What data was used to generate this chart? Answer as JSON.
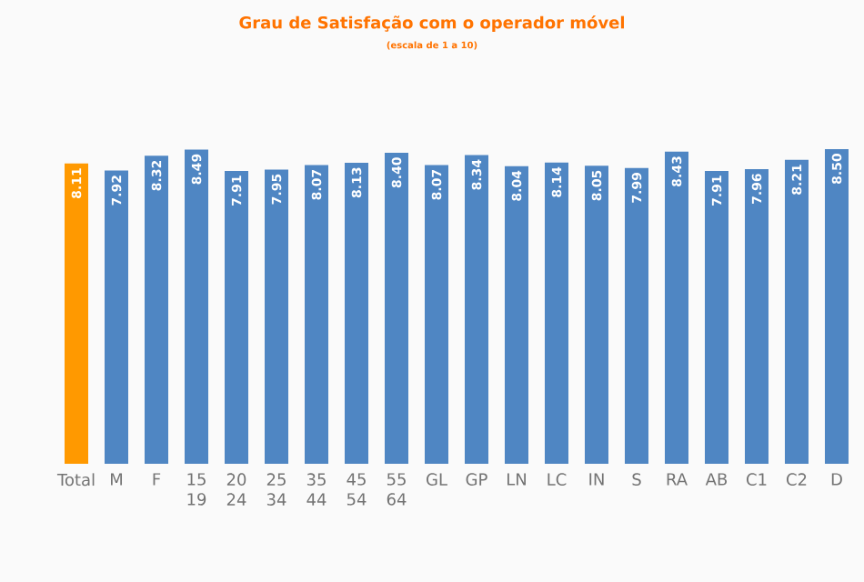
{
  "chart_data": {
    "type": "bar",
    "title": "Grau de Satisfação com o operador móvel",
    "subtitle": "(escala de 1 a 10)",
    "categories": [
      "Total",
      "M",
      "F",
      "15 19",
      "20 24",
      "25 34",
      "35 44",
      "45 54",
      "55 64",
      "GL",
      "GP",
      "LN",
      "LC",
      "IN",
      "S",
      "RA",
      "AB",
      "C1",
      "C2",
      "D"
    ],
    "values": [
      8.11,
      7.92,
      8.32,
      8.49,
      7.91,
      7.95,
      8.07,
      8.13,
      8.4,
      8.07,
      8.34,
      8.04,
      8.14,
      8.05,
      7.99,
      8.43,
      7.91,
      7.96,
      8.21,
      8.5
    ],
    "value_labels": [
      "8.11",
      "7.92",
      "8.32",
      "8.49",
      "7.91",
      "7.95",
      "8.07",
      "8.13",
      "8.40",
      "8.07",
      "8.34",
      "8.04",
      "8.14",
      "8.05",
      "7.99",
      "8.43",
      "7.91",
      "7.96",
      "8.21",
      "8.50"
    ],
    "colors": [
      "#ff9900",
      "#4f86c3",
      "#4f86c3",
      "#4f86c3",
      "#4f86c3",
      "#4f86c3",
      "#4f86c3",
      "#4f86c3",
      "#4f86c3",
      "#4f86c3",
      "#4f86c3",
      "#4f86c3",
      "#4f86c3",
      "#4f86c3",
      "#4f86c3",
      "#4f86c3",
      "#4f86c3",
      "#4f86c3",
      "#4f86c3",
      "#4f86c3"
    ]
  }
}
